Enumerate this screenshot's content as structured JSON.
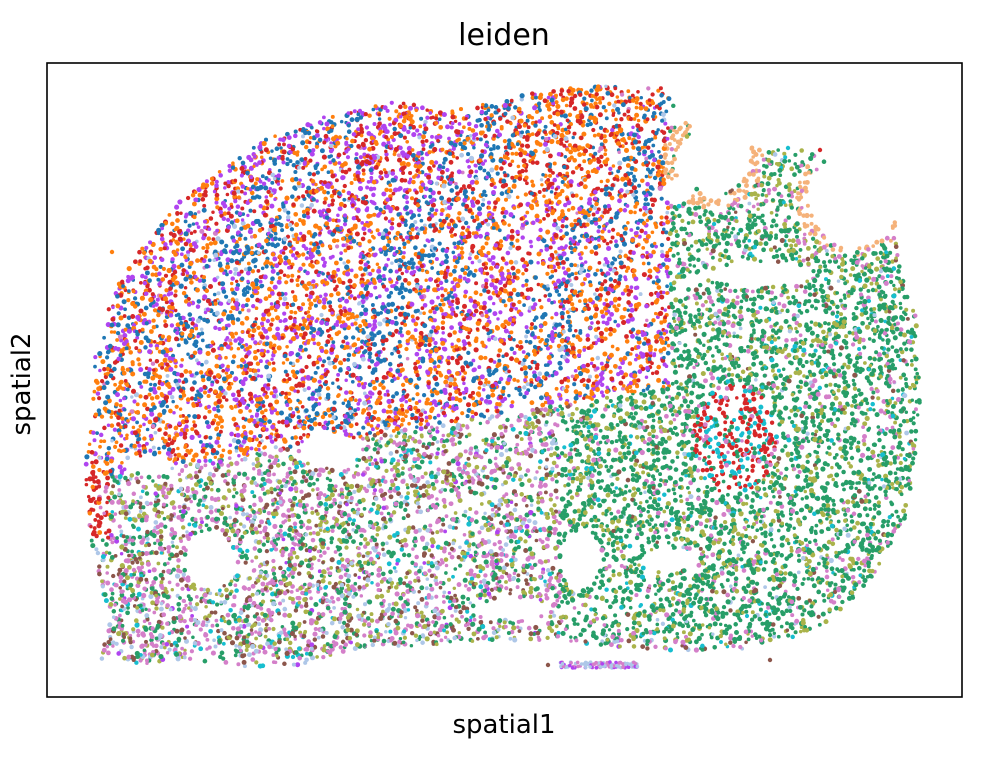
{
  "chart_data": {
    "type": "scatter",
    "title": "leiden",
    "xlabel": "spatial1",
    "ylabel": "spatial2",
    "xticks": [],
    "yticks": [],
    "grid": false,
    "legend": "none",
    "color_by": "leiden",
    "series_colors": {
      "cluster_blue": "#1f77b4",
      "cluster_orange": "#ff7f0e",
      "cluster_red": "#d62728",
      "cluster_purple": "#b044f0",
      "cluster_green": "#279e68",
      "cluster_olive": "#aab34a",
      "cluster_pink": "#d47fc9",
      "cluster_brown": "#8c564b",
      "cluster_cyan": "#17becf",
      "cluster_lightblue": "#aec7e8",
      "cluster_peach": "#f5b27a"
    }
  }
}
